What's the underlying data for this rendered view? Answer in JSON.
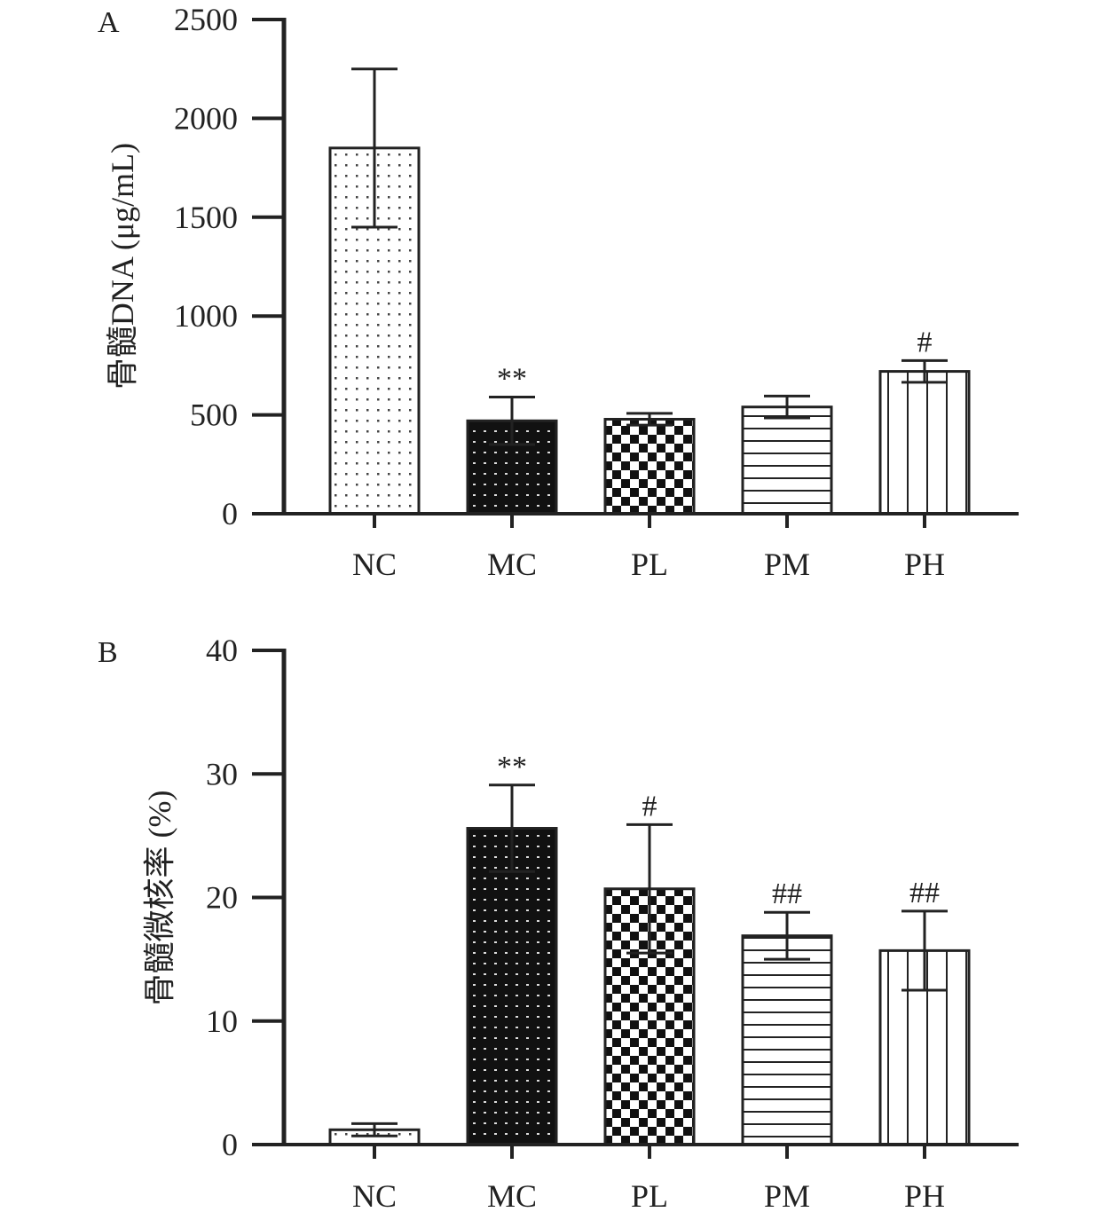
{
  "chart_data": [
    {
      "type": "bar",
      "panel_label": "A",
      "title": "",
      "xlabel": "",
      "ylabel": "骨髓DNA (μg/mL)",
      "ylim": [
        0,
        2500
      ],
      "yticks": [
        "0",
        "500",
        "1000",
        "1500",
        "2000",
        "2500"
      ],
      "yticks_values": [
        0,
        500,
        1000,
        1500,
        2000,
        2500
      ],
      "categories": [
        "NC",
        "MC",
        "PL",
        "PM",
        "PH"
      ],
      "values": [
        1850,
        470,
        478,
        540,
        720
      ],
      "errors": [
        400,
        120,
        30,
        55,
        55
      ],
      "annotations": [
        "",
        "**",
        "",
        "",
        "#"
      ],
      "patterns": [
        "dots",
        "black-dots",
        "checker",
        "hlines",
        "vlines"
      ]
    },
    {
      "type": "bar",
      "panel_label": "B",
      "title": "",
      "xlabel": "",
      "ylabel": "骨髓微核率 (%)",
      "ylim": [
        0,
        40
      ],
      "yticks": [
        "0",
        "10",
        "20",
        "30",
        "40"
      ],
      "yticks_values": [
        0,
        10,
        20,
        30,
        40
      ],
      "categories": [
        "NC",
        "MC",
        "PL",
        "PM",
        "PH"
      ],
      "values": [
        1.2,
        25.6,
        20.7,
        16.9,
        15.7
      ],
      "errors": [
        0.5,
        3.5,
        5.2,
        1.9,
        3.2
      ],
      "annotations": [
        "",
        "**",
        "#",
        "##",
        "##"
      ],
      "patterns": [
        "dots",
        "black-dots",
        "checker",
        "hlines",
        "vlines"
      ]
    }
  ]
}
